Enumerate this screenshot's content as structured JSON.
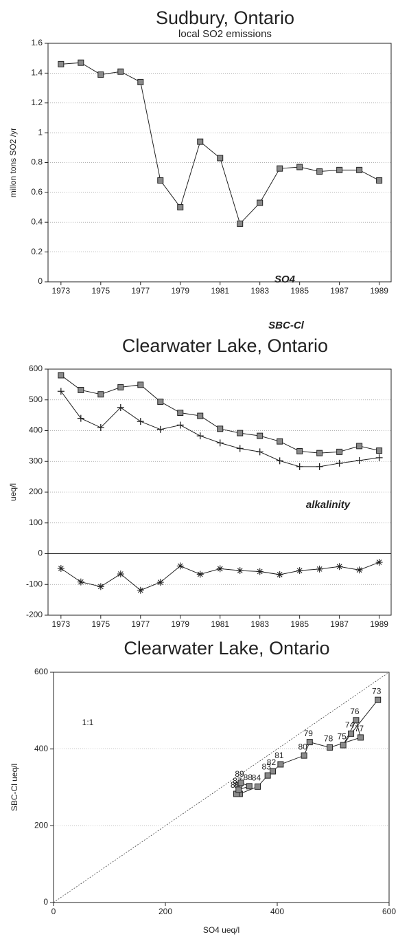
{
  "chart_data": [
    {
      "type": "line",
      "title": "Sudbury, Ontario",
      "subtitle": "local SO2 emissions",
      "ylabel": "millon tons SO2 /yr",
      "x": [
        1973,
        1974,
        1975,
        1976,
        1977,
        1978,
        1979,
        1980,
        1981,
        1982,
        1983,
        1984,
        1985,
        1986,
        1987,
        1988,
        1989
      ],
      "series": [
        {
          "name": null,
          "color": "#222222",
          "marker": "square",
          "values": [
            1.46,
            1.47,
            1.39,
            1.41,
            1.34,
            0.68,
            0.5,
            0.94,
            0.83,
            0.39,
            0.53,
            0.76,
            0.77,
            0.74,
            0.75,
            0.75,
            0.68
          ]
        }
      ],
      "xlim": [
        1972.35,
        1989.6
      ],
      "xticks": [
        1973,
        1975,
        1977,
        1979,
        1981,
        1983,
        1985,
        1987,
        1989
      ],
      "ylim": [
        0,
        1.6
      ],
      "yticks": [
        0,
        0.2,
        0.4,
        0.6,
        0.8,
        1,
        1.2,
        1.4,
        1.6
      ],
      "grid": true
    },
    {
      "type": "line",
      "title": "Clearwater Lake, Ontario",
      "ylabel": "ueq/l",
      "x": [
        1973,
        1974,
        1975,
        1976,
        1977,
        1978,
        1979,
        1980,
        1981,
        1982,
        1983,
        1984,
        1985,
        1986,
        1987,
        1988,
        1989
      ],
      "series": [
        {
          "name": "SO4",
          "color": "#222222",
          "marker": "square",
          "values": [
            580,
            532,
            518,
            541,
            549,
            494,
            458,
            448,
            406,
            392,
            383,
            365,
            333,
            327,
            331,
            350,
            335
          ]
        },
        {
          "name": "SBC-Cl",
          "color": "#222222",
          "marker": "plus",
          "values": [
            528,
            440,
            410,
            475,
            430,
            404,
            418,
            383,
            360,
            342,
            331,
            302,
            283,
            283,
            294,
            303,
            312
          ]
        },
        {
          "name": "alkalinity",
          "color": "#222222",
          "marker": "asterisk",
          "values": [
            -48,
            -92,
            -107,
            -66,
            -119,
            -93,
            -40,
            -67,
            -49,
            -55,
            -58,
            -68,
            -55,
            -50,
            -42,
            -53,
            -28
          ]
        }
      ],
      "xlim": [
        1972.35,
        1989.6
      ],
      "xticks": [
        1973,
        1975,
        1977,
        1979,
        1981,
        1983,
        1985,
        1987,
        1989
      ],
      "ylim": [
        -200,
        600
      ],
      "yticks": [
        -200,
        -100,
        0,
        100,
        200,
        300,
        400,
        500,
        600
      ],
      "grid": true
    },
    {
      "type": "scatter",
      "title": "Clearwater Lake, Ontario",
      "xlabel": "SO4 ueq/l",
      "ylabel": "SBC-Cl ueq/l",
      "annotation": "1:1",
      "x": [
        580,
        532,
        518,
        541,
        549,
        494,
        458,
        448,
        406,
        392,
        383,
        365,
        333,
        327,
        331,
        350,
        335
      ],
      "values": [
        528,
        440,
        410,
        475,
        430,
        404,
        418,
        383,
        360,
        342,
        331,
        302,
        283,
        283,
        294,
        303,
        312
      ],
      "point_labels": [
        "73",
        "74",
        "75",
        "76",
        "77",
        "78",
        "79",
        "80",
        "81",
        "82",
        "83",
        "84",
        "85",
        "86",
        "87",
        "88",
        "89"
      ],
      "color": "#222222",
      "marker": "square",
      "xlim": [
        0,
        600
      ],
      "xticks": [
        0,
        200,
        400,
        600
      ],
      "ylim": [
        0,
        600
      ],
      "yticks": [
        0,
        200,
        400,
        600
      ],
      "grid": true
    }
  ]
}
